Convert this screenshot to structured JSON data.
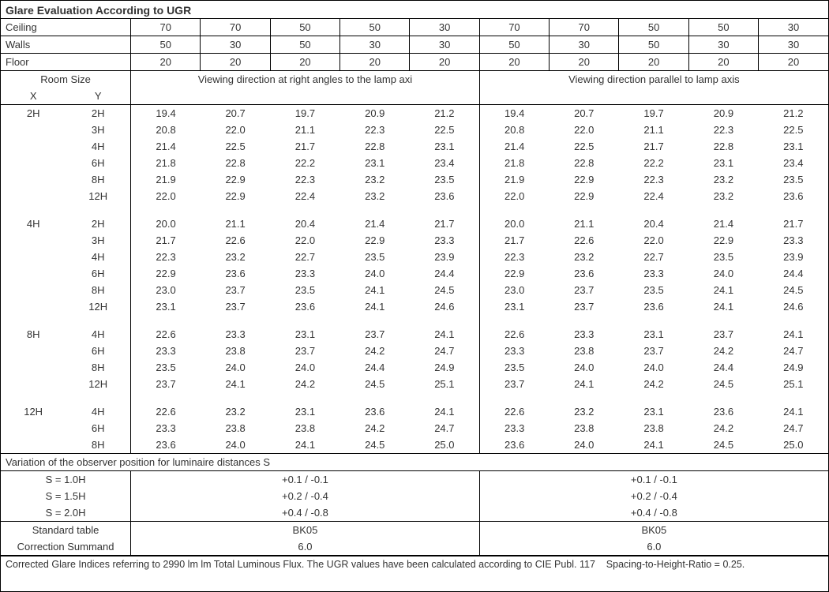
{
  "title": "Glare Evaluation According to UGR",
  "param_labels": {
    "ceiling": "Ceiling",
    "walls": "Walls",
    "floor": "Floor"
  },
  "param_values": {
    "ceiling": [
      "70",
      "70",
      "50",
      "50",
      "30",
      "70",
      "70",
      "50",
      "50",
      "30"
    ],
    "walls": [
      "50",
      "30",
      "50",
      "30",
      "30",
      "50",
      "30",
      "50",
      "30",
      "30"
    ],
    "floor": [
      "20",
      "20",
      "20",
      "20",
      "20",
      "20",
      "20",
      "20",
      "20",
      "20"
    ]
  },
  "room_size_label": "Room Size",
  "room_size_x": "X",
  "room_size_y": "Y",
  "heading_left": "Viewing direction at right angles to the lamp axi",
  "heading_right": "Viewing direction parallel to lamp axis",
  "groups": [
    {
      "x": "2H",
      "rows": [
        {
          "y": "2H",
          "v": [
            "19.4",
            "20.7",
            "19.7",
            "20.9",
            "21.2",
            "19.4",
            "20.7",
            "19.7",
            "20.9",
            "21.2"
          ]
        },
        {
          "y": "3H",
          "v": [
            "20.8",
            "22.0",
            "21.1",
            "22.3",
            "22.5",
            "20.8",
            "22.0",
            "21.1",
            "22.3",
            "22.5"
          ]
        },
        {
          "y": "4H",
          "v": [
            "21.4",
            "22.5",
            "21.7",
            "22.8",
            "23.1",
            "21.4",
            "22.5",
            "21.7",
            "22.8",
            "23.1"
          ]
        },
        {
          "y": "6H",
          "v": [
            "21.8",
            "22.8",
            "22.2",
            "23.1",
            "23.4",
            "21.8",
            "22.8",
            "22.2",
            "23.1",
            "23.4"
          ]
        },
        {
          "y": "8H",
          "v": [
            "21.9",
            "22.9",
            "22.3",
            "23.2",
            "23.5",
            "21.9",
            "22.9",
            "22.3",
            "23.2",
            "23.5"
          ]
        },
        {
          "y": "12H",
          "v": [
            "22.0",
            "22.9",
            "22.4",
            "23.2",
            "23.6",
            "22.0",
            "22.9",
            "22.4",
            "23.2",
            "23.6"
          ]
        }
      ]
    },
    {
      "x": "4H",
      "rows": [
        {
          "y": "2H",
          "v": [
            "20.0",
            "21.1",
            "20.4",
            "21.4",
            "21.7",
            "20.0",
            "21.1",
            "20.4",
            "21.4",
            "21.7"
          ]
        },
        {
          "y": "3H",
          "v": [
            "21.7",
            "22.6",
            "22.0",
            "22.9",
            "23.3",
            "21.7",
            "22.6",
            "22.0",
            "22.9",
            "23.3"
          ]
        },
        {
          "y": "4H",
          "v": [
            "22.3",
            "23.2",
            "22.7",
            "23.5",
            "23.9",
            "22.3",
            "23.2",
            "22.7",
            "23.5",
            "23.9"
          ]
        },
        {
          "y": "6H",
          "v": [
            "22.9",
            "23.6",
            "23.3",
            "24.0",
            "24.4",
            "22.9",
            "23.6",
            "23.3",
            "24.0",
            "24.4"
          ]
        },
        {
          "y": "8H",
          "v": [
            "23.0",
            "23.7",
            "23.5",
            "24.1",
            "24.5",
            "23.0",
            "23.7",
            "23.5",
            "24.1",
            "24.5"
          ]
        },
        {
          "y": "12H",
          "v": [
            "23.1",
            "23.7",
            "23.6",
            "24.1",
            "24.6",
            "23.1",
            "23.7",
            "23.6",
            "24.1",
            "24.6"
          ]
        }
      ]
    },
    {
      "x": "8H",
      "rows": [
        {
          "y": "4H",
          "v": [
            "22.6",
            "23.3",
            "23.1",
            "23.7",
            "24.1",
            "22.6",
            "23.3",
            "23.1",
            "23.7",
            "24.1"
          ]
        },
        {
          "y": "6H",
          "v": [
            "23.3",
            "23.8",
            "23.7",
            "24.2",
            "24.7",
            "23.3",
            "23.8",
            "23.7",
            "24.2",
            "24.7"
          ]
        },
        {
          "y": "8H",
          "v": [
            "23.5",
            "24.0",
            "24.0",
            "24.4",
            "24.9",
            "23.5",
            "24.0",
            "24.0",
            "24.4",
            "24.9"
          ]
        },
        {
          "y": "12H",
          "v": [
            "23.7",
            "24.1",
            "24.2",
            "24.5",
            "25.1",
            "23.7",
            "24.1",
            "24.2",
            "24.5",
            "25.1"
          ]
        }
      ]
    },
    {
      "x": "12H",
      "rows": [
        {
          "y": "4H",
          "v": [
            "22.6",
            "23.2",
            "23.1",
            "23.6",
            "24.1",
            "22.6",
            "23.2",
            "23.1",
            "23.6",
            "24.1"
          ]
        },
        {
          "y": "6H",
          "v": [
            "23.3",
            "23.8",
            "23.8",
            "24.2",
            "24.7",
            "23.3",
            "23.8",
            "23.8",
            "24.2",
            "24.7"
          ]
        },
        {
          "y": "8H",
          "v": [
            "23.6",
            "24.0",
            "24.1",
            "24.5",
            "25.0",
            "23.6",
            "24.0",
            "24.1",
            "24.5",
            "25.0"
          ]
        }
      ]
    }
  ],
  "variation_label": "Variation of the observer position for luminaire distances S",
  "variation_rows": [
    {
      "s": "S = 1.0H",
      "left": "+0.1 / -0.1",
      "right": "+0.1 / -0.1"
    },
    {
      "s": "S = 1.5H",
      "left": "+0.2 / -0.4",
      "right": "+0.2 / -0.4"
    },
    {
      "s": "S = 2.0H",
      "left": "+0.4 / -0.8",
      "right": "+0.4 / -0.8"
    }
  ],
  "std_table_label": "Standard table",
  "std_table_left": "BK05",
  "std_table_right": "BK05",
  "corr_summand_label": "Correction Summand",
  "corr_summand_left": "6.0",
  "corr_summand_right": "6.0",
  "footnote": "Corrected Glare Indices referring to 2990 lm lm Total Luminous Flux. The UGR values have been calculated according to CIE Publ. 117    Spacing-to-Height-Ratio = 0.25."
}
